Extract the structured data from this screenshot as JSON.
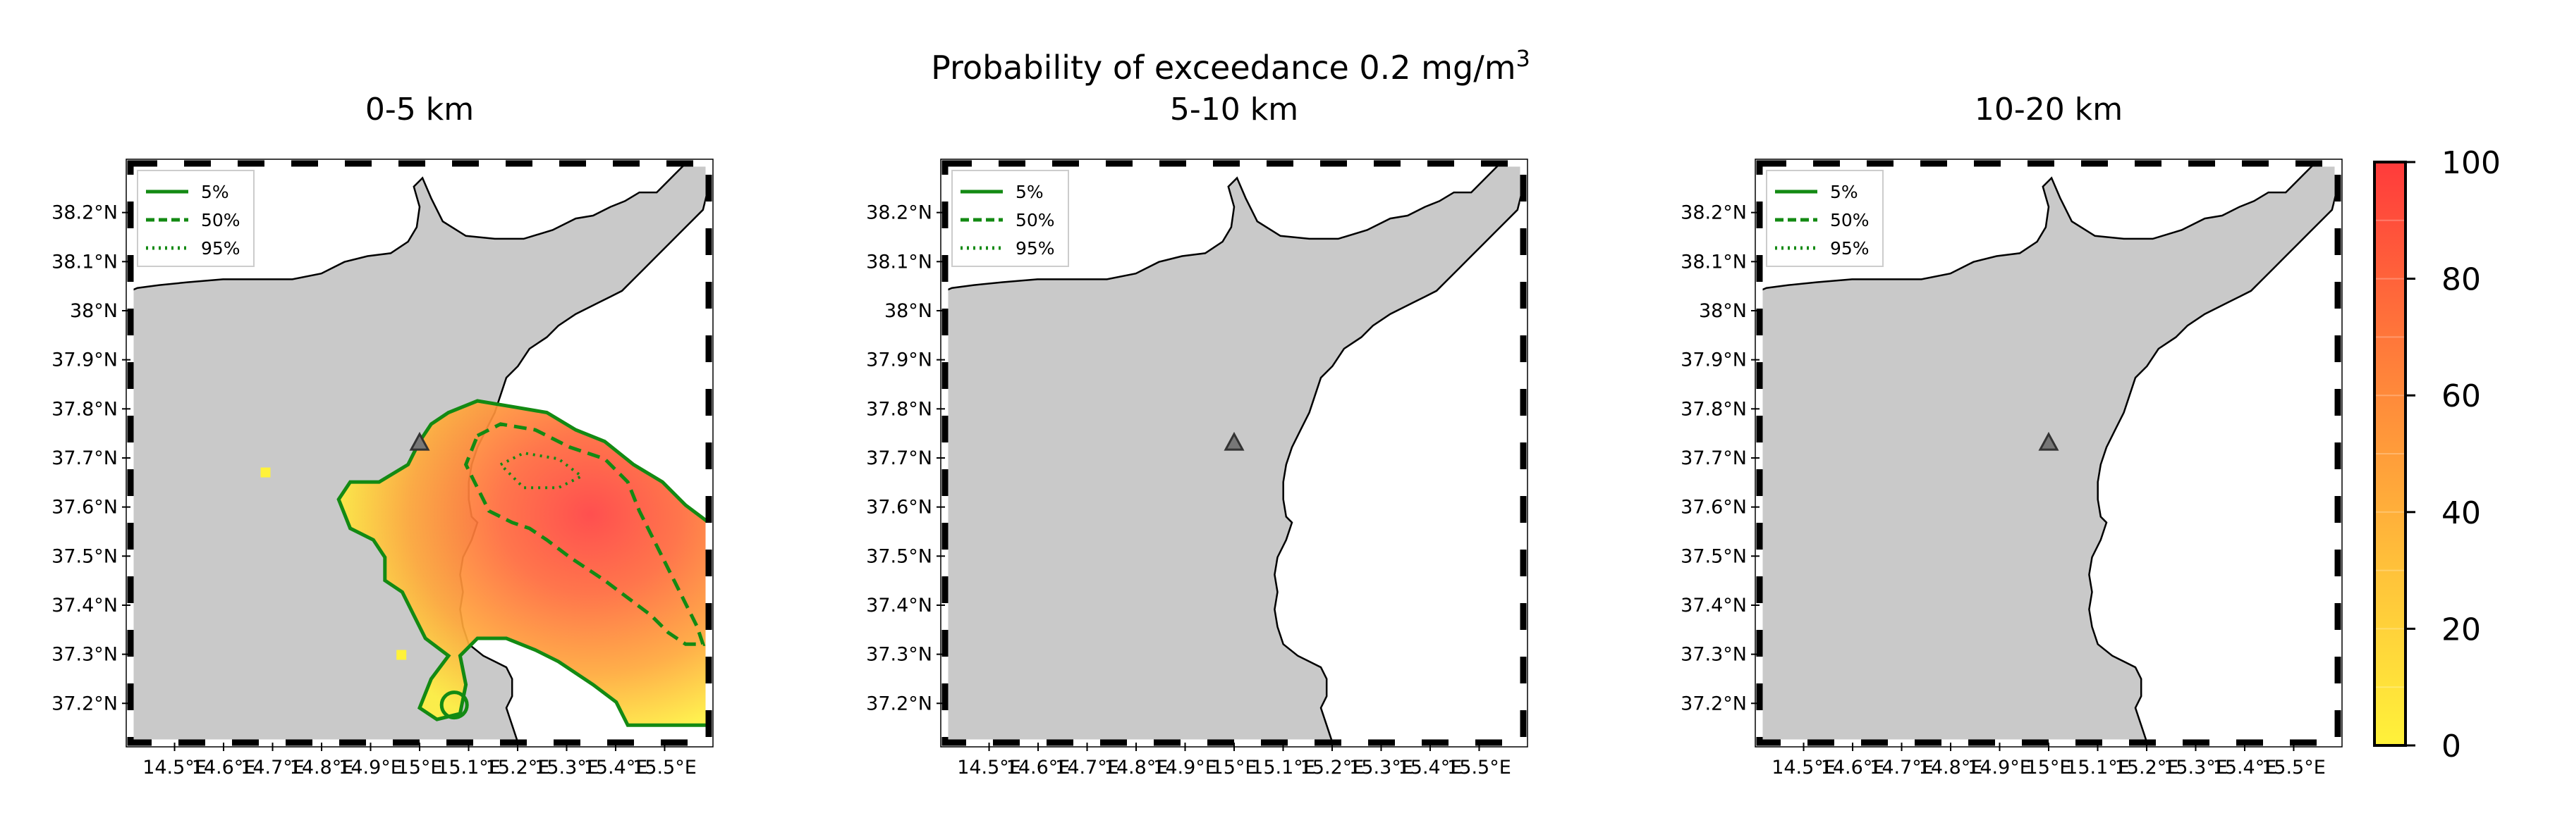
{
  "figure": {
    "title_line1": "Probability of exceedance 0.2 mg/m",
    "title_sup": "3"
  },
  "panels": [
    {
      "title": "0-5 km",
      "has_plume": true
    },
    {
      "title": "5-10 km",
      "has_plume": false
    },
    {
      "title": "10-20 km",
      "has_plume": false
    }
  ],
  "axes": {
    "lon_ticks": [
      "14.5°E",
      "14.6°E",
      "14.7°E",
      "14.8°E",
      "14.9°E",
      "15°E",
      "15.1°E",
      "15.2°E",
      "15.3°E",
      "15.4°E",
      "15.5°E"
    ],
    "lat_ticks": [
      "38.2°N",
      "38.1°N",
      "38°N",
      "37.9°N",
      "37.8°N",
      "37.7°N",
      "37.6°N",
      "37.5°N",
      "37.4°N",
      "37.3°N",
      "37.2°N"
    ],
    "lon_range": [
      14.41,
      15.59
    ],
    "lat_range": [
      37.12,
      38.3
    ]
  },
  "legend": {
    "entries": [
      {
        "label": "5%",
        "style": "solid"
      },
      {
        "label": "50%",
        "style": "dashed"
      },
      {
        "label": "95%",
        "style": "dotted"
      }
    ],
    "contour_color": "#138a13"
  },
  "colorbar": {
    "ticks": [
      "0",
      "20",
      "40",
      "60",
      "80",
      "100"
    ],
    "range": [
      0,
      100
    ],
    "color_low": "#fff23a",
    "color_high": "#ff3b3b"
  },
  "marker": {
    "name": "volcano-vent",
    "lon": 15.0,
    "lat": 37.73
  },
  "colors": {
    "land": "#c9c9c9",
    "coast": "#000000"
  }
}
